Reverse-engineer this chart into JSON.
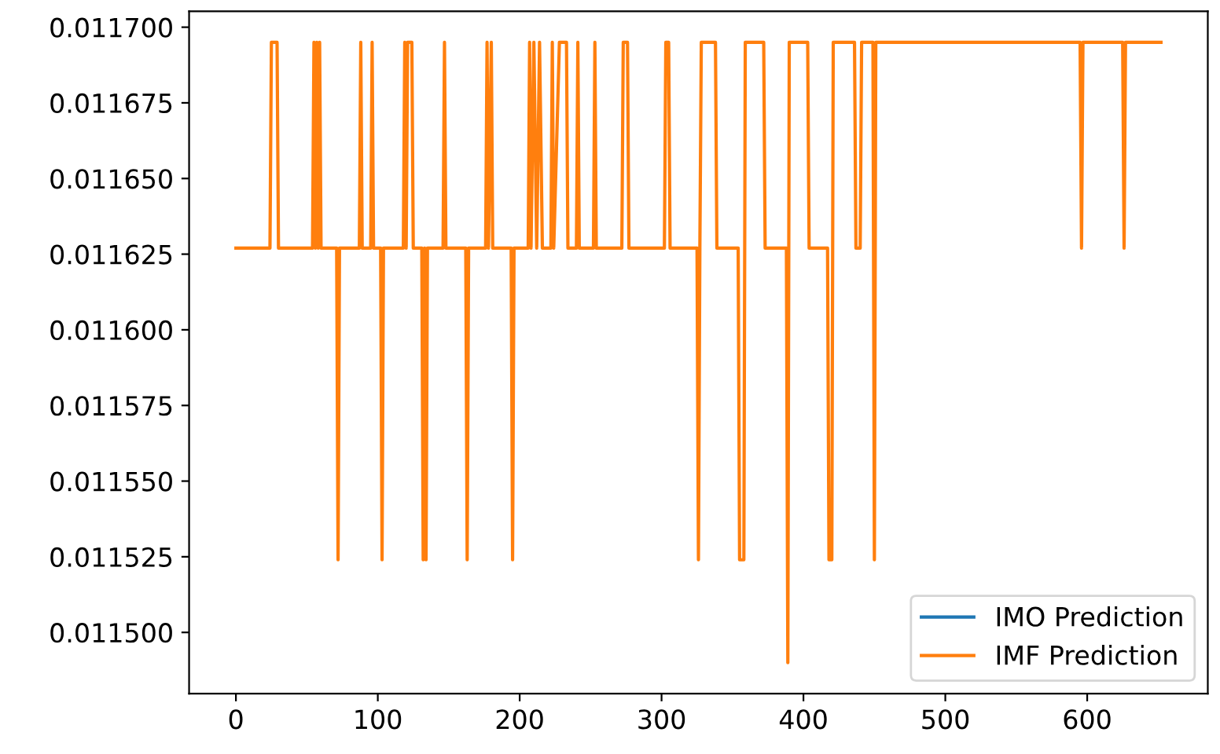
{
  "chart_data": {
    "type": "line",
    "legend": "bottom right",
    "grid": false,
    "line_style": "solid",
    "marker": "none",
    "x": [
      0,
      24,
      25,
      29,
      30,
      54,
      55,
      56,
      57,
      58,
      59,
      60,
      71,
      72,
      73,
      87,
      88,
      89,
      95,
      96,
      97,
      102,
      103,
      104,
      118,
      119,
      120,
      121,
      124,
      125,
      131,
      132,
      133,
      134,
      135,
      146,
      147,
      148,
      162,
      163,
      164,
      176,
      177,
      178,
      180,
      181,
      194,
      195,
      196,
      206,
      207,
      208,
      210,
      212,
      214,
      216,
      222,
      223,
      224,
      228,
      233,
      234,
      240,
      241,
      242,
      252,
      253,
      254,
      272,
      273,
      276,
      277,
      302,
      303,
      305,
      306,
      325,
      326,
      327,
      328,
      338,
      339,
      354,
      355,
      358,
      359,
      372,
      373,
      388,
      389,
      390,
      403,
      404,
      417,
      418,
      420,
      421,
      436,
      437,
      440,
      441,
      449,
      450,
      451,
      595,
      596,
      597,
      625,
      626,
      627,
      652
    ],
    "series": [
      {
        "name": "IMO Prediction",
        "color": "#1f77b4",
        "values": [
          null,
          null,
          null,
          null,
          null,
          null,
          null,
          null,
          null,
          null,
          null,
          null,
          null,
          null,
          null,
          null,
          null,
          null,
          null,
          null,
          null,
          null,
          null,
          null,
          null,
          null,
          null,
          null,
          null,
          null,
          null,
          null,
          null,
          null,
          null,
          null,
          null,
          null,
          null,
          null,
          null,
          null,
          null,
          null,
          null,
          null,
          null,
          null,
          null,
          null,
          null,
          null,
          null,
          null,
          null,
          null,
          null,
          null,
          null,
          null,
          null,
          null,
          null,
          null,
          null,
          null,
          null,
          null,
          null,
          null,
          null,
          null,
          null,
          null,
          null,
          null,
          null,
          null,
          null,
          null,
          null,
          null,
          null,
          null,
          null,
          null,
          null,
          null,
          null,
          null,
          null,
          null,
          null,
          null,
          null,
          null,
          null,
          null,
          null,
          null,
          null,
          null,
          null,
          null,
          null,
          null,
          null,
          null,
          null,
          null,
          null
        ]
      },
      {
        "name": "IMF Prediction",
        "color": "#ff7f0e",
        "values": [
          0.011627,
          0.011627,
          0.011695,
          0.011695,
          0.011627,
          0.011627,
          0.011695,
          0.011627,
          0.011695,
          0.011627,
          0.011695,
          0.011627,
          0.011627,
          0.011524,
          0.011627,
          0.011627,
          0.011695,
          0.011627,
          0.011627,
          0.011695,
          0.011627,
          0.011627,
          0.011524,
          0.011627,
          0.011627,
          0.011695,
          0.011627,
          0.011695,
          0.011695,
          0.011627,
          0.011627,
          0.011524,
          0.011627,
          0.011524,
          0.011627,
          0.011627,
          0.011695,
          0.011627,
          0.011627,
          0.011524,
          0.011627,
          0.011627,
          0.011695,
          0.011627,
          0.011695,
          0.011627,
          0.011627,
          0.011524,
          0.011627,
          0.011627,
          0.011695,
          0.011627,
          0.011695,
          0.011627,
          0.011695,
          0.011627,
          0.011627,
          0.011695,
          0.011627,
          0.011695,
          0.011695,
          0.011627,
          0.011627,
          0.011695,
          0.011627,
          0.011627,
          0.011695,
          0.011627,
          0.011627,
          0.011695,
          0.011695,
          0.011627,
          0.011627,
          0.011695,
          0.011695,
          0.011627,
          0.011627,
          0.011524,
          0.011627,
          0.011695,
          0.011695,
          0.011627,
          0.011627,
          0.011524,
          0.011524,
          0.011695,
          0.011695,
          0.011627,
          0.011627,
          0.01149,
          0.011695,
          0.011695,
          0.011627,
          0.011627,
          0.011524,
          0.011524,
          0.011695,
          0.011695,
          0.011627,
          0.011627,
          0.011695,
          0.011695,
          0.011524,
          0.011695,
          0.011695,
          0.011627,
          0.011695,
          0.011695,
          0.011627,
          0.011695,
          0.011695
        ]
      }
    ],
    "xlim": [
      -33,
      685
    ],
    "xticks": [
      0,
      100,
      200,
      300,
      400,
      500,
      600
    ],
    "ylim": [
      0.01147975,
      0.01170525
    ],
    "yticks": [
      {
        "value": 0.0115,
        "label": "0.011500"
      },
      {
        "value": 0.011525,
        "label": "0.011525"
      },
      {
        "value": 0.01155,
        "label": "0.011550"
      },
      {
        "value": 0.011575,
        "label": "0.011575"
      },
      {
        "value": 0.0116,
        "label": "0.011600"
      },
      {
        "value": 0.011625,
        "label": "0.011625"
      },
      {
        "value": 0.01165,
        "label": "0.011650"
      },
      {
        "value": 0.011675,
        "label": "0.011675"
      },
      {
        "value": 0.0117,
        "label": "0.011700"
      }
    ]
  }
}
